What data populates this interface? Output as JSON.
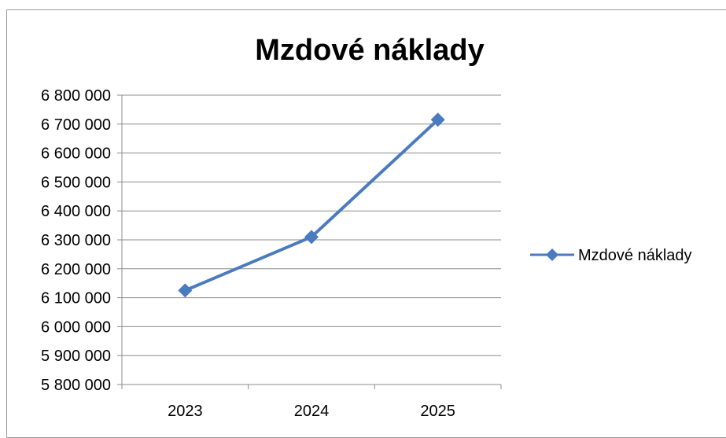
{
  "chart_data": {
    "type": "line",
    "title": "Mzdové náklady",
    "xlabel": "",
    "ylabel": "",
    "categories": [
      "2023",
      "2024",
      "2025"
    ],
    "series": [
      {
        "name": "Mzdové náklady",
        "values": [
          6125000,
          6310000,
          6715000
        ],
        "color": "#4a7bbf",
        "marker": "diamond"
      }
    ],
    "ylim": [
      5800000,
      6800000
    ],
    "ytick_step": 100000,
    "yticks": [
      "6 800 000",
      "6 700 000",
      "6 600 000",
      "6 500 000",
      "6 400 000",
      "6 300 000",
      "6 200 000",
      "6 100 000",
      "6 000 000",
      "5 900 000",
      "5 800 000"
    ],
    "grid": true,
    "legend": "right"
  }
}
